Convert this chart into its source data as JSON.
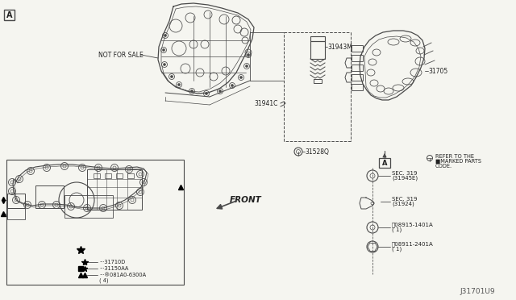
{
  "bg_color": "#f5f5f0",
  "diagram_id": "J31701U9",
  "lc": "#4a4a4a",
  "tc": "#222222",
  "fs": 5.5,
  "fss": 5.0,
  "fsid": 6.5,
  "labels": {
    "not_for_sale": "NOT FOR SALE",
    "front": "FRONT",
    "part_31943M": "31943M",
    "part_31941C": "31941C",
    "part_31705": "31705",
    "part_31528Q": "31528Q",
    "part_31710D": "31710D",
    "part_31150AA": "31150AA",
    "part_081A0": "®081A0-6300A",
    "part_081A0_qty": "( 4)",
    "sec319_31945E_1": "SEC. 319",
    "sec319_31945E_2": "(31945E)",
    "sec319_31924_1": "SEC. 319",
    "sec319_31924_2": "(31924)",
    "part_08915_1": "Ⓟ08915-1401A",
    "part_08915_2": "( 1)",
    "part_08911_1": "Ⓠ08911-2401A",
    "part_08911_2": "( 1)",
    "box_A": "A",
    "refer_1": "REFER TO THE",
    "refer_2": "■MARKED PARTS",
    "refer_3": "CODE."
  }
}
